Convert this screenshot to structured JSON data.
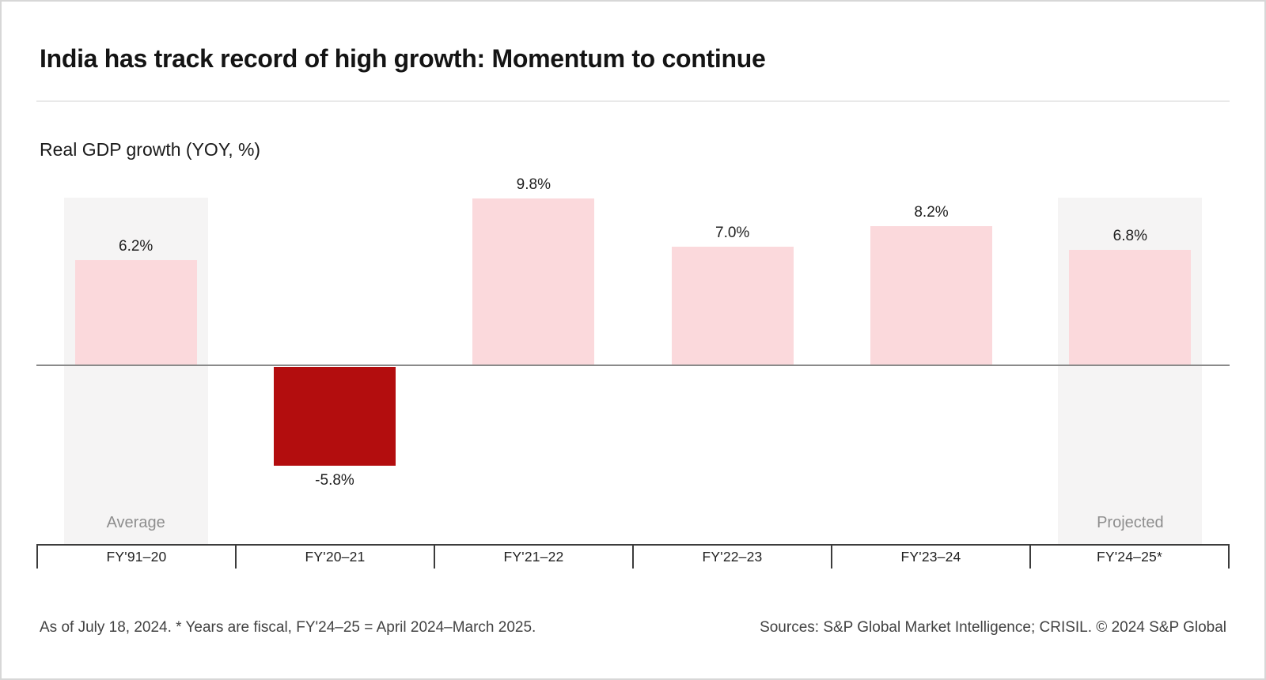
{
  "title": "India has track record of high growth: Momentum to continue",
  "chart_data": {
    "type": "bar",
    "title": "Real GDP growth (YOY, %)",
    "xlabel": "",
    "ylabel": "Real GDP growth (YOY, %)",
    "categories": [
      "FY'91–20",
      "FY'20–21",
      "FY'21–22",
      "FY'22–23",
      "FY'23–24",
      "FY'24–25*"
    ],
    "values": [
      6.2,
      -5.8,
      9.8,
      7.0,
      8.2,
      6.8
    ],
    "value_labels": [
      "6.2%",
      "-5.8%",
      "9.8%",
      "7.0%",
      "8.2%",
      "6.8%"
    ],
    "band_annotations": [
      {
        "index": 0,
        "label": "Average"
      },
      {
        "index": 5,
        "label": "Projected"
      }
    ],
    "ylim": [
      -8,
      11
    ],
    "grid": false,
    "legend": false,
    "colors": {
      "positive_bar": "#FBD9DC",
      "negative_bar": "#B30D0E",
      "highlight_band": "#F5F4F4",
      "annotation_text": "#8E8E8E",
      "axis_line": "#3C3C3C",
      "zero_line": "#8A8A8A"
    }
  },
  "footer": {
    "note": "As of July 18, 2024. * Years are fiscal, FY'24–25 = April 2024–March 2025.",
    "sources": "Sources: S&P Global Market Intelligence; CRISIL. © 2024 S&P Global"
  }
}
